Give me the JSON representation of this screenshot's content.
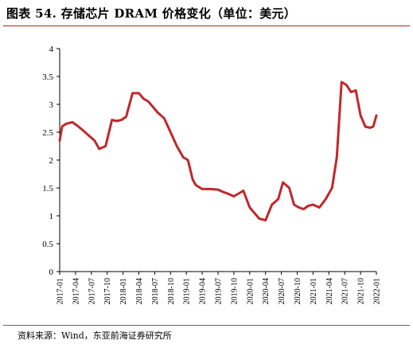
{
  "figure": {
    "title": "图表 54. 存储芯片 DRAM 价格变化（单位：美元）",
    "source": "资料来源：Wind，东亚前海证券研究所"
  },
  "chart_data": {
    "type": "line",
    "title": "",
    "xlabel": "",
    "ylabel": "",
    "ylim": [
      0,
      4
    ],
    "yticks": [
      "0",
      "0.5",
      "1",
      "1.5",
      "2",
      "2.5",
      "3",
      "3.5",
      "4"
    ],
    "x_categories": [
      "2017-01",
      "2017-04",
      "2017-07",
      "2017-10",
      "2018-01",
      "2018-04",
      "2018-07",
      "2018-10",
      "2019-01",
      "2019-04",
      "2019-07",
      "2019-10",
      "2020-01",
      "2020-04",
      "2020-07",
      "2020-10",
      "2021-01",
      "2021-04",
      "2021-07",
      "2021-10",
      "2022-01"
    ],
    "grid": false,
    "legend": "none",
    "line_color": "#c0282d",
    "series": [
      {
        "name": "",
        "x": [
          0,
          0.15,
          0.4,
          0.8,
          1.1,
          1.4,
          1.8,
          2.2,
          2.5,
          2.9,
          3.3,
          3.6,
          3.9,
          4.2,
          4.6,
          5.0,
          5.3,
          5.6,
          5.9,
          6.2,
          6.6,
          7.0,
          7.4,
          7.8,
          8.1,
          8.4,
          8.6,
          9.0,
          9.5,
          10.0,
          10.3,
          10.6,
          11.0,
          11.6,
          12.0,
          12.3,
          12.6,
          13.0,
          13.4,
          13.8,
          14.1,
          14.5,
          14.8,
          15.1,
          15.4,
          15.7,
          16.0,
          16.4,
          16.8,
          17.2,
          17.5,
          17.8,
          18.1,
          18.4,
          18.7,
          19.0,
          19.3,
          19.6,
          19.8,
          20.0
        ],
        "y": [
          2.35,
          2.6,
          2.65,
          2.68,
          2.62,
          2.55,
          2.45,
          2.35,
          2.2,
          2.25,
          2.72,
          2.7,
          2.72,
          2.78,
          3.2,
          3.2,
          3.1,
          3.05,
          2.95,
          2.85,
          2.75,
          2.5,
          2.25,
          2.05,
          2.0,
          1.65,
          1.55,
          1.48,
          1.48,
          1.47,
          1.43,
          1.4,
          1.35,
          1.45,
          1.15,
          1.05,
          0.95,
          0.92,
          1.2,
          1.3,
          1.6,
          1.5,
          1.2,
          1.15,
          1.12,
          1.18,
          1.2,
          1.15,
          1.3,
          1.5,
          2.05,
          3.4,
          3.35,
          3.22,
          3.25,
          2.8,
          2.6,
          2.58,
          2.6,
          2.8
        ]
      }
    ]
  }
}
